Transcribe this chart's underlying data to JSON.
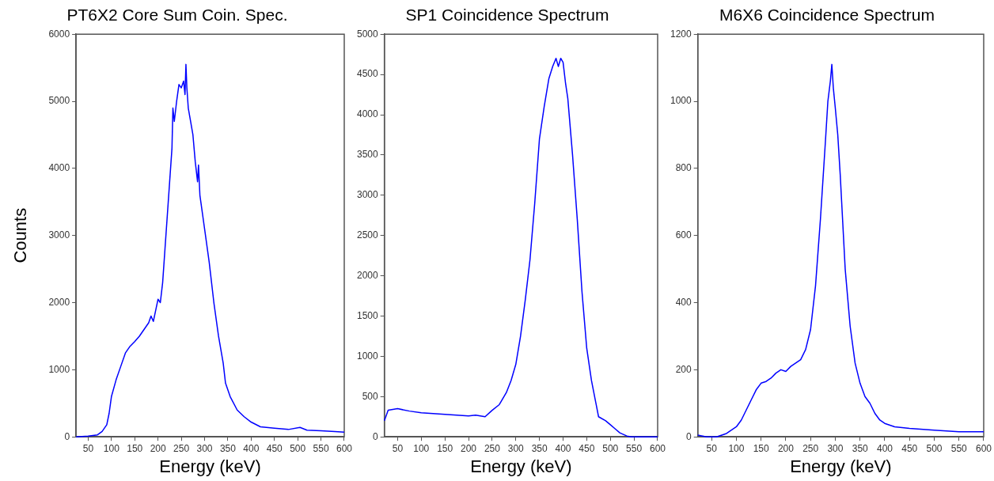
{
  "chart_data": [
    {
      "type": "line",
      "title": "PT6X2 Core Sum Coin. Spec.",
      "xlabel": "Energy (keV)",
      "ylabel": "Counts",
      "marker": "none",
      "grid": false,
      "xlim": [
        24,
        600
      ],
      "xticks": [
        50,
        100,
        150,
        200,
        250,
        300,
        350,
        400,
        450,
        500,
        550,
        600
      ],
      "ylim": [
        0,
        6000
      ],
      "yticks": [
        0,
        1000,
        2000,
        3000,
        4000,
        5000,
        6000
      ],
      "series": [
        {
          "color": "#0000ff",
          "x": [
            24,
            50,
            70,
            80,
            90,
            95,
            100,
            110,
            120,
            130,
            140,
            150,
            160,
            170,
            180,
            185,
            190,
            200,
            205,
            210,
            215,
            220,
            225,
            230,
            232,
            235,
            240,
            245,
            250,
            255,
            258,
            260,
            262,
            265,
            270,
            275,
            280,
            285,
            287,
            290,
            300,
            310,
            320,
            330,
            340,
            345,
            355,
            370,
            385,
            400,
            420,
            450,
            480,
            505,
            520,
            550,
            580,
            600
          ],
          "values": [
            0,
            10,
            30,
            80,
            180,
            350,
            600,
            850,
            1050,
            1250,
            1350,
            1420,
            1500,
            1600,
            1700,
            1800,
            1720,
            2050,
            2000,
            2300,
            2800,
            3300,
            3800,
            4300,
            4900,
            4700,
            5000,
            5250,
            5200,
            5300,
            5100,
            5550,
            5200,
            4900,
            4700,
            4500,
            4100,
            3800,
            4050,
            3600,
            3100,
            2600,
            2000,
            1500,
            1100,
            800,
            600,
            400,
            300,
            220,
            150,
            130,
            110,
            140,
            100,
            90,
            80,
            70
          ]
        }
      ]
    },
    {
      "type": "line",
      "title": "SP1 Coincidence Spectrum",
      "xlabel": "Energy (keV)",
      "marker": "none",
      "grid": false,
      "xlim": [
        22,
        600
      ],
      "xticks": [
        50,
        100,
        150,
        200,
        250,
        300,
        350,
        400,
        450,
        500,
        550,
        600
      ],
      "ylim": [
        0,
        5000
      ],
      "yticks": [
        0,
        500,
        1000,
        1500,
        2000,
        2500,
        3000,
        3500,
        4000,
        4500,
        5000
      ],
      "series": [
        {
          "color": "#0000ff",
          "x": [
            22,
            30,
            50,
            75,
            100,
            125,
            150,
            175,
            200,
            215,
            235,
            250,
            265,
            280,
            290,
            300,
            310,
            320,
            330,
            340,
            350,
            360,
            370,
            378,
            385,
            390,
            395,
            400,
            405,
            410,
            420,
            430,
            440,
            450,
            460,
            470,
            475,
            490,
            500,
            510,
            520,
            535,
            545,
            600
          ],
          "values": [
            200,
            330,
            350,
            320,
            300,
            290,
            280,
            270,
            260,
            270,
            250,
            330,
            400,
            550,
            700,
            900,
            1250,
            1700,
            2200,
            2900,
            3700,
            4100,
            4450,
            4600,
            4700,
            4600,
            4700,
            4650,
            4400,
            4200,
            3500,
            2700,
            1800,
            1100,
            700,
            400,
            250,
            200,
            150,
            100,
            50,
            10,
            0,
            0
          ]
        }
      ]
    },
    {
      "type": "line",
      "title": "M6X6 Coincidence Spectrum",
      "xlabel": "Energy (keV)",
      "marker": "none",
      "grid": false,
      "xlim": [
        22,
        600
      ],
      "xticks": [
        50,
        100,
        150,
        200,
        250,
        300,
        350,
        400,
        450,
        500,
        550,
        600
      ],
      "ylim": [
        0,
        1200
      ],
      "yticks": [
        0,
        200,
        400,
        600,
        800,
        1000,
        1200
      ],
      "series": [
        {
          "color": "#0000ff",
          "x": [
            22,
            40,
            60,
            80,
            100,
            110,
            120,
            130,
            140,
            150,
            160,
            170,
            180,
            190,
            200,
            210,
            220,
            230,
            240,
            250,
            260,
            270,
            280,
            285,
            290,
            293,
            296,
            300,
            305,
            310,
            315,
            320,
            330,
            340,
            350,
            360,
            370,
            380,
            390,
            400,
            420,
            450,
            500,
            550,
            600
          ],
          "values": [
            5,
            0,
            0,
            10,
            30,
            50,
            80,
            110,
            140,
            160,
            165,
            175,
            190,
            200,
            195,
            210,
            220,
            230,
            260,
            320,
            450,
            650,
            880,
            1000,
            1060,
            1110,
            1040,
            980,
            900,
            780,
            640,
            500,
            330,
            220,
            160,
            120,
            100,
            70,
            50,
            40,
            30,
            25,
            20,
            15,
            15
          ]
        }
      ]
    }
  ]
}
